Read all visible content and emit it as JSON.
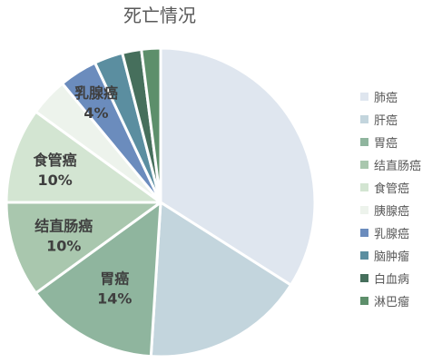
{
  "chart_data": {
    "type": "pie",
    "title": "死亡情况",
    "categories": [
      "肺癌",
      "肝癌",
      "胃癌",
      "结直肠癌",
      "食管癌",
      "胰腺癌",
      "乳腺癌",
      "脑肿瘤",
      "白血病",
      "淋巴瘤"
    ],
    "values": [
      34,
      17,
      14,
      10,
      10,
      4,
      4,
      3,
      2,
      2
    ],
    "colors": [
      "#dfe6ef",
      "#c3d5dd",
      "#8fb59e",
      "#a9c7ae",
      "#d3e5d2",
      "#edf3ec",
      "#6b8cbd",
      "#5b8ea0",
      "#466f5c",
      "#5d8f6b"
    ],
    "data_labels": [
      {
        "name": "",
        "value": ""
      },
      {
        "name": "",
        "value": ""
      },
      {
        "name": "胃癌",
        "value": "14%"
      },
      {
        "name": "结直肠癌",
        "value": "10%"
      },
      {
        "name": "食管癌",
        "value": "10%"
      },
      {
        "name": "",
        "value": ""
      },
      {
        "name": "乳腺癌",
        "value": "4%"
      },
      {
        "name": "",
        "value": ""
      },
      {
        "name": "",
        "value": ""
      },
      {
        "name": "",
        "value": ""
      }
    ],
    "legend_position": "right",
    "start_angle": "12 o'clock",
    "direction": "clockwise"
  }
}
